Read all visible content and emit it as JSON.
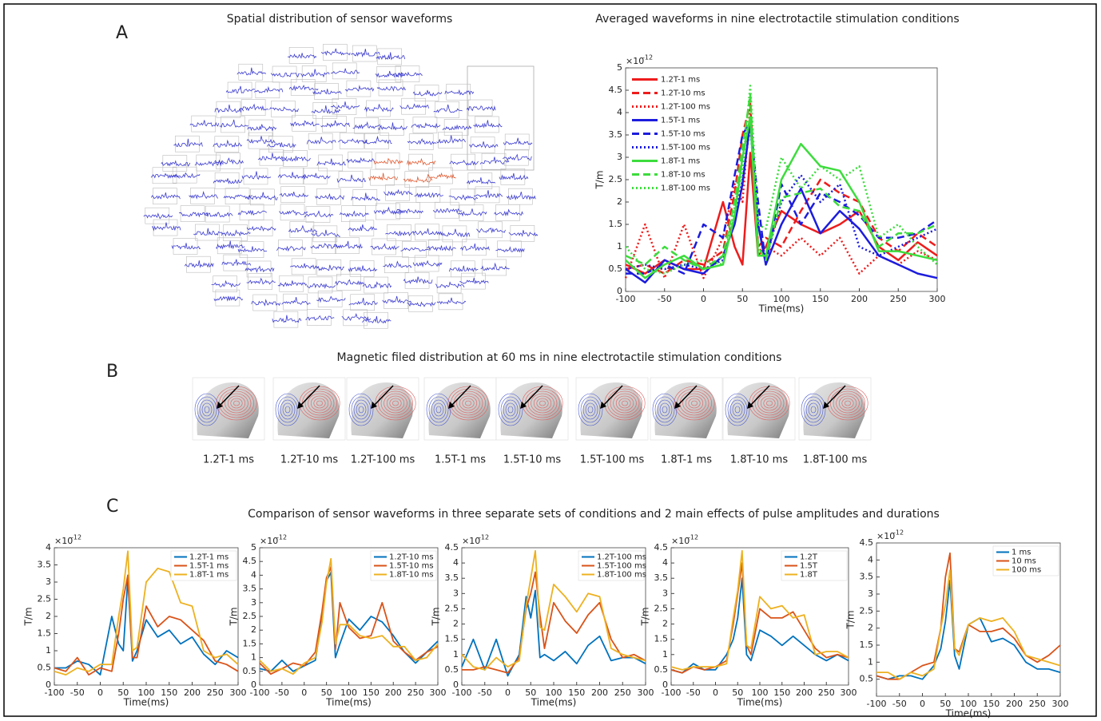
{
  "panel_a": {
    "label": "A",
    "sensor_title": "Spatial distribution of sensor waveforms"
  },
  "panel_b": {
    "label": "B",
    "title": "Magnetic filed distribution at 60 ms in nine electrotactile stimulation conditions",
    "maps": [
      "1.2T-1 ms",
      "1.2T-10 ms",
      "1.2T-100 ms",
      "1.5T-1 ms",
      "1.5T-10 ms",
      "1.5T-100 ms",
      "1.8T-1 ms",
      "1.8T-10 ms",
      "1.8T-100 ms"
    ]
  },
  "panel_c": {
    "label": "C",
    "title": "Comparison of sensor waveforms in three separate sets of conditions and 2 main effects of pulse amplitudes and durations"
  },
  "chart_data": [
    {
      "type": "line",
      "title": "Averaged waveforms in nine electrotactile stimulation conditions",
      "x_label": "Time(ms)",
      "y_label": "T/m",
      "y_base": "×10",
      "y_exponent": "-12",
      "legend": "upper left",
      "x": [
        -100,
        -75,
        -50,
        -25,
        0,
        25,
        40,
        50,
        60,
        70,
        80,
        100,
        125,
        150,
        175,
        200,
        225,
        250,
        275,
        300
      ],
      "xlim": [
        -100,
        300
      ],
      "xticks": [
        -100,
        -50,
        0,
        50,
        100,
        150,
        200,
        250,
        300
      ],
      "ylim": [
        0,
        5
      ],
      "yticks": [
        0,
        0.5,
        1,
        1.5,
        2,
        2.5,
        3,
        3.5,
        4,
        4.5,
        5
      ],
      "series": [
        {
          "name": "1.2T-1 ms",
          "color": "#ee1c1c",
          "dash": "solid",
          "values": [
            0.6,
            0.4,
            0.7,
            0.5,
            0.5,
            2.0,
            1.0,
            0.6,
            3.1,
            0.8,
            1.0,
            1.8,
            1.5,
            1.3,
            1.5,
            1.8,
            1.0,
            0.7,
            1.1,
            0.8
          ]
        },
        {
          "name": "1.2T-10 ms",
          "color": "#ee1c1c",
          "dash": "dashed",
          "values": [
            0.5,
            0.6,
            0.4,
            0.7,
            0.6,
            0.9,
            2.2,
            3.5,
            4.2,
            1.0,
            1.2,
            1.0,
            1.8,
            2.5,
            2.2,
            2.0,
            1.2,
            0.9,
            1.3,
            1.0
          ]
        },
        {
          "name": "1.2T-100 ms",
          "color": "#ee1c1c",
          "dash": "dotted",
          "values": [
            0.3,
            1.5,
            0.3,
            1.5,
            0.3,
            1.2,
            2.4,
            2.0,
            4.1,
            0.9,
            1.0,
            0.8,
            1.2,
            0.8,
            1.2,
            0.4,
            0.8,
            0.6,
            0.9,
            0.7
          ]
        },
        {
          "name": "1.5T-1 ms",
          "color": "#1c1cdd",
          "dash": "solid",
          "values": [
            0.5,
            0.2,
            0.7,
            0.5,
            0.4,
            0.8,
            1.5,
            2.4,
            3.8,
            1.5,
            0.6,
            1.5,
            2.3,
            1.3,
            1.8,
            1.4,
            0.8,
            0.6,
            0.4,
            0.3
          ]
        },
        {
          "name": "1.5T-10 ms",
          "color": "#1c1cdd",
          "dash": "dashed",
          "values": [
            0.4,
            0.4,
            0.6,
            0.4,
            1.5,
            1.2,
            2.6,
            3.5,
            3.8,
            2.0,
            0.6,
            2.4,
            1.5,
            2.2,
            2.0,
            1.7,
            1.2,
            1.2,
            1.3,
            1.6
          ]
        },
        {
          "name": "1.5T-100 ms",
          "color": "#1c1cdd",
          "dash": "dotted",
          "values": [
            0.5,
            0.6,
            0.5,
            0.6,
            0.5,
            0.7,
            1.6,
            2.5,
            3.7,
            1.5,
            0.7,
            2.0,
            2.6,
            2.0,
            2.4,
            1.0,
            0.8,
            1.0,
            1.2,
            1.4
          ]
        },
        {
          "name": "1.8T-1 ms",
          "color": "#3ddc3d",
          "dash": "solid",
          "values": [
            0.7,
            0.3,
            0.6,
            0.8,
            0.5,
            0.6,
            1.7,
            3.0,
            3.9,
            0.8,
            0.8,
            2.5,
            3.3,
            2.8,
            2.7,
            2.0,
            0.9,
            0.9,
            0.8,
            0.7
          ]
        },
        {
          "name": "1.8T-10 ms",
          "color": "#3ddc3d",
          "dash": "dashed",
          "values": [
            0.8,
            0.6,
            1.0,
            0.7,
            0.5,
            0.8,
            2.0,
            3.2,
            4.4,
            1.0,
            0.7,
            2.1,
            2.2,
            2.3,
            1.9,
            1.8,
            1.0,
            1.3,
            1.3,
            1.5
          ]
        },
        {
          "name": "1.8T-100 ms",
          "color": "#3ddc3d",
          "dash": "dotted",
          "values": [
            1.0,
            0.5,
            0.4,
            0.6,
            0.7,
            0.6,
            1.9,
            2.7,
            4.6,
            1.5,
            1.4,
            3.0,
            2.3,
            2.8,
            2.5,
            2.8,
            1.2,
            1.5,
            1.0,
            0.6
          ]
        }
      ]
    },
    {
      "type": "line",
      "x_label": "Time(ms)",
      "y_label": "T/m",
      "y_base": "×10",
      "y_exponent": "-12",
      "legend": "upper right",
      "x": [
        -100,
        -75,
        -50,
        -25,
        0,
        25,
        40,
        50,
        60,
        70,
        80,
        100,
        125,
        150,
        175,
        200,
        225,
        250,
        275,
        300
      ],
      "xlim": [
        -100,
        300
      ],
      "xticks": [
        -100,
        -50,
        0,
        50,
        100,
        150,
        200,
        250,
        300
      ],
      "ylim": [
        0,
        4
      ],
      "yticks": [
        0,
        0.5,
        1,
        1.5,
        2,
        2.5,
        3,
        3.5,
        4
      ],
      "series": [
        {
          "name": "1.2T-1 ms",
          "color": "#0072bd",
          "dash": "solid",
          "values": [
            0.5,
            0.5,
            0.7,
            0.6,
            0.3,
            2.0,
            1.2,
            1.0,
            3.1,
            0.7,
            1.0,
            1.9,
            1.4,
            1.6,
            1.2,
            1.4,
            0.9,
            0.6,
            1.0,
            0.8
          ]
        },
        {
          "name": "1.5T-1 ms",
          "color": "#d95319",
          "dash": "solid",
          "values": [
            0.5,
            0.4,
            0.8,
            0.3,
            0.5,
            0.4,
            1.5,
            2.5,
            3.2,
            0.8,
            0.8,
            2.3,
            1.7,
            2.0,
            1.9,
            1.6,
            1.3,
            0.7,
            0.6,
            0.4
          ]
        },
        {
          "name": "1.8T-1 ms",
          "color": "#edb120",
          "dash": "solid",
          "values": [
            0.4,
            0.3,
            0.5,
            0.4,
            0.6,
            0.6,
            2.0,
            2.8,
            3.9,
            1.0,
            1.1,
            3.0,
            3.4,
            3.3,
            2.4,
            2.3,
            1.0,
            0.8,
            0.9,
            0.6
          ]
        }
      ]
    },
    {
      "type": "line",
      "x_label": "Time(ms)",
      "y_label": "T/m",
      "y_base": "×10",
      "y_exponent": "-12",
      "legend": "upper right",
      "x": [
        -100,
        -75,
        -50,
        -25,
        0,
        25,
        40,
        50,
        60,
        70,
        80,
        100,
        125,
        150,
        175,
        200,
        225,
        250,
        275,
        300
      ],
      "xlim": [
        -100,
        300
      ],
      "xticks": [
        -100,
        -50,
        0,
        50,
        100,
        150,
        200,
        250,
        300
      ],
      "ylim": [
        0,
        5
      ],
      "yticks": [
        0,
        0.5,
        1,
        1.5,
        2,
        2.5,
        3,
        3.5,
        4,
        4.5,
        5
      ],
      "series": [
        {
          "name": "1.2T-10 ms",
          "color": "#0072bd",
          "dash": "solid",
          "values": [
            0.6,
            0.5,
            0.9,
            0.5,
            0.7,
            0.9,
            2.5,
            3.8,
            4.1,
            1.0,
            1.5,
            2.4,
            2.0,
            2.5,
            2.3,
            1.8,
            1.2,
            0.8,
            1.2,
            1.6
          ]
        },
        {
          "name": "1.5T-10 ms",
          "color": "#d95319",
          "dash": "solid",
          "values": [
            0.8,
            0.4,
            0.6,
            0.8,
            0.7,
            1.2,
            2.7,
            3.9,
            4.3,
            1.3,
            3.0,
            2.1,
            1.7,
            1.8,
            3.0,
            1.6,
            1.2,
            0.9,
            1.2,
            1.4
          ]
        },
        {
          "name": "1.8T-10 ms",
          "color": "#edb120",
          "dash": "solid",
          "values": [
            0.9,
            0.5,
            0.6,
            0.4,
            0.8,
            1.0,
            2.3,
            3.7,
            4.6,
            1.5,
            2.2,
            2.2,
            1.8,
            1.7,
            1.8,
            1.4,
            1.4,
            0.9,
            1.0,
            1.5
          ]
        }
      ]
    },
    {
      "type": "line",
      "x_label": "Time(ms)",
      "y_label": "T/m",
      "y_base": "×10",
      "y_exponent": "-12",
      "legend": "upper right",
      "x": [
        -100,
        -75,
        -50,
        -25,
        0,
        25,
        40,
        50,
        60,
        70,
        80,
        100,
        125,
        150,
        175,
        200,
        225,
        250,
        275,
        300
      ],
      "xlim": [
        -100,
        300
      ],
      "xticks": [
        -100,
        -50,
        0,
        50,
        100,
        150,
        200,
        250,
        300
      ],
      "ylim": [
        0,
        4.5
      ],
      "yticks": [
        0,
        0.5,
        1,
        1.5,
        2,
        2.5,
        3,
        3.5,
        4,
        4.5
      ],
      "series": [
        {
          "name": "1.2T-100 ms",
          "color": "#0072bd",
          "dash": "solid",
          "values": [
            0.6,
            1.5,
            0.5,
            1.5,
            0.3,
            1.0,
            2.9,
            2.2,
            3.1,
            0.9,
            1.0,
            0.8,
            1.1,
            0.7,
            1.3,
            1.6,
            0.8,
            0.9,
            0.9,
            0.7
          ]
        },
        {
          "name": "1.5T-100 ms",
          "color": "#d95319",
          "dash": "solid",
          "values": [
            0.5,
            0.5,
            0.6,
            0.5,
            0.4,
            0.9,
            2.5,
            3.0,
            3.7,
            2.3,
            1.2,
            2.7,
            2.1,
            1.7,
            2.3,
            2.7,
            1.5,
            0.9,
            1.0,
            0.8
          ]
        },
        {
          "name": "1.8T-100 ms",
          "color": "#edb120",
          "dash": "solid",
          "values": [
            1.0,
            0.6,
            0.5,
            0.9,
            0.6,
            0.8,
            2.6,
            3.5,
            4.4,
            1.9,
            1.8,
            3.3,
            2.9,
            2.4,
            3.0,
            2.9,
            1.2,
            1.0,
            0.9,
            0.8
          ]
        }
      ]
    },
    {
      "type": "line",
      "x_label": "Time(ms)",
      "y_label": "T/m",
      "y_base": "×10",
      "y_exponent": "-12",
      "legend": "upper right",
      "x": [
        -100,
        -75,
        -50,
        -25,
        0,
        25,
        40,
        50,
        60,
        70,
        80,
        100,
        125,
        150,
        175,
        200,
        225,
        250,
        275,
        300
      ],
      "xlim": [
        -100,
        300
      ],
      "xticks": [
        -100,
        -50,
        0,
        50,
        100,
        150,
        200,
        250,
        300
      ],
      "ylim": [
        0,
        4.5
      ],
      "yticks": [
        0,
        0.5,
        1,
        1.5,
        2,
        2.5,
        3,
        3.5,
        4,
        4.5
      ],
      "series": [
        {
          "name": "1.2T",
          "color": "#0072bd",
          "dash": "solid",
          "values": [
            0.5,
            0.4,
            0.7,
            0.5,
            0.5,
            1.0,
            1.5,
            2.2,
            3.5,
            1.0,
            0.8,
            1.8,
            1.6,
            1.3,
            1.6,
            1.3,
            1.0,
            0.8,
            1.0,
            0.8
          ]
        },
        {
          "name": "1.5T",
          "color": "#d95319",
          "dash": "solid",
          "values": [
            0.5,
            0.4,
            0.6,
            0.5,
            0.6,
            0.8,
            2.0,
            3.0,
            4.0,
            1.3,
            1.0,
            2.5,
            2.2,
            2.2,
            2.4,
            1.8,
            1.2,
            0.9,
            1.0,
            0.9
          ]
        },
        {
          "name": "1.8T",
          "color": "#edb120",
          "dash": "solid",
          "values": [
            0.6,
            0.5,
            0.6,
            0.6,
            0.6,
            0.7,
            2.2,
            3.1,
            4.4,
            1.3,
            1.2,
            2.9,
            2.5,
            2.6,
            2.2,
            2.3,
            1.0,
            1.1,
            1.1,
            0.9
          ]
        }
      ]
    },
    {
      "type": "line",
      "x_label": "Time(ms)",
      "y_label": "T/m",
      "y_base": "×10",
      "y_exponent": "-12",
      "legend": "upper right",
      "x": [
        -100,
        -75,
        -50,
        -25,
        0,
        25,
        40,
        50,
        60,
        70,
        80,
        100,
        125,
        150,
        175,
        200,
        225,
        250,
        275,
        300
      ],
      "xlim": [
        -100,
        300
      ],
      "xticks": [
        -100,
        -50,
        0,
        50,
        100,
        150,
        200,
        250,
        300
      ],
      "ylim": [
        0,
        4.5
      ],
      "yticks": [
        0.5,
        1,
        1.5,
        2,
        2.5,
        3,
        3.5,
        4,
        4.5
      ],
      "series": [
        {
          "name": "1 ms",
          "color": "#0072bd",
          "dash": "solid",
          "values": [
            0.6,
            0.5,
            0.6,
            0.6,
            0.5,
            0.9,
            1.4,
            2.2,
            3.4,
            1.2,
            0.8,
            2.1,
            2.3,
            1.6,
            1.7,
            1.5,
            1.0,
            0.8,
            0.8,
            0.7
          ]
        },
        {
          "name": "10 ms",
          "color": "#d95319",
          "dash": "solid",
          "values": [
            0.6,
            0.5,
            0.5,
            0.7,
            0.9,
            1.0,
            2.0,
            3.5,
            4.2,
            1.4,
            1.3,
            2.1,
            1.9,
            1.9,
            2.0,
            1.7,
            1.2,
            1.0,
            1.2,
            1.5
          ]
        },
        {
          "name": "100 ms",
          "color": "#edb120",
          "dash": "solid",
          "values": [
            0.7,
            0.7,
            0.5,
            0.7,
            0.6,
            0.8,
            2.0,
            2.7,
            3.7,
            1.4,
            1.2,
            2.1,
            2.3,
            2.2,
            2.3,
            1.9,
            1.2,
            1.1,
            1.0,
            0.9
          ]
        }
      ]
    }
  ]
}
